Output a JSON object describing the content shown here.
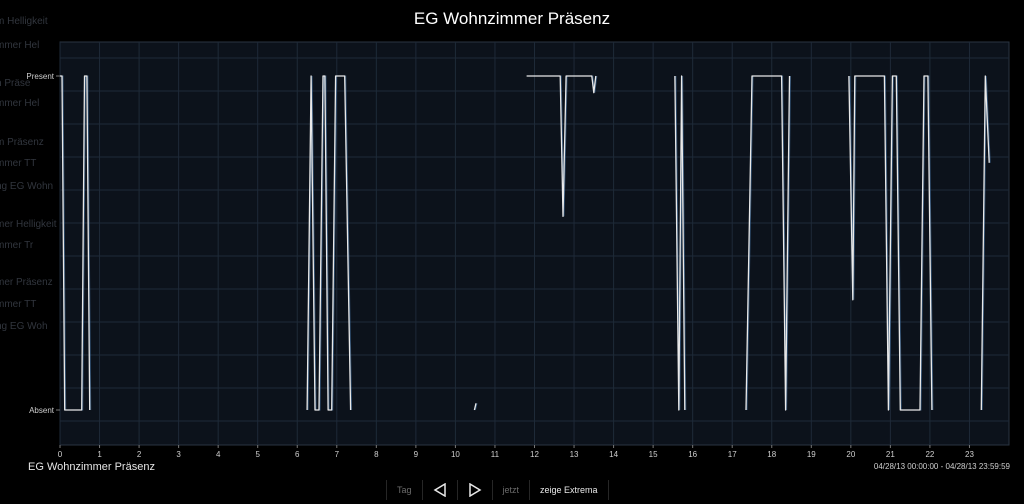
{
  "title": "EG Wohnzimmer Präsenz",
  "background_labels": [
    "m Helligkeit",
    "mmer Hel",
    "n Präse",
    "mmer Hel",
    "m Präsenz",
    "mmer TT",
    "ng EG Wohn",
    "mer Helligkeit",
    "mmer Tr",
    "mer Präsenz",
    "mmer TT",
    "ng EG Woh"
  ],
  "series_label": "EG Wohnzimmer Präsenz",
  "date_range": "04/28/13 00:00:00 - 04/28/13 23:59:59",
  "toolbar": {
    "tag": "Tag",
    "prev_icon": "triangle-left-icon",
    "next_icon": "triangle-right-icon",
    "jetzt": "jetzt",
    "extrema": "zeige Extrema"
  },
  "colors": {
    "plot_bg": "#0c121b",
    "grid": "#1e2a38",
    "line": "#e9e9e9",
    "line_alt": "#4a79ad"
  },
  "chart_data": {
    "type": "line",
    "title": "EG Wohnzimmer Präsenz",
    "x_ticks": [
      "0",
      "1",
      "2",
      "3",
      "4",
      "5",
      "6",
      "7",
      "8",
      "9",
      "10",
      "11",
      "12",
      "13",
      "14",
      "15",
      "16",
      "17",
      "18",
      "19",
      "20",
      "21",
      "22",
      "23"
    ],
    "xlim": [
      0,
      24
    ],
    "y_categories": [
      "Absent",
      "Present"
    ],
    "ylim": [
      0,
      1
    ],
    "grid": true,
    "series": [
      {
        "values": [
          [
            0.0,
            1
          ],
          [
            0.05,
            1
          ],
          [
            0.12,
            0
          ],
          [
            0.55,
            0
          ],
          [
            0.62,
            1
          ],
          [
            0.68,
            1
          ],
          [
            0.75,
            0
          ],
          [
            6.25,
            0
          ],
          [
            6.35,
            1
          ],
          [
            6.45,
            0
          ],
          [
            6.55,
            0
          ],
          [
            6.65,
            1
          ],
          [
            6.7,
            1
          ],
          [
            6.78,
            0
          ],
          [
            6.87,
            0
          ],
          [
            6.97,
            1
          ],
          [
            7.2,
            1
          ],
          [
            7.35,
            0
          ],
          [
            10.48,
            0
          ],
          [
            10.52,
            0.02
          ],
          [
            11.8,
            1
          ],
          [
            12.65,
            1
          ],
          [
            12.72,
            0.58
          ],
          [
            12.8,
            1
          ],
          [
            13.45,
            1
          ],
          [
            13.5,
            0.95
          ],
          [
            13.55,
            1
          ],
          [
            15.55,
            1
          ],
          [
            15.65,
            0
          ],
          [
            15.72,
            1
          ],
          [
            15.8,
            0
          ],
          [
            17.35,
            0
          ],
          [
            17.5,
            1
          ],
          [
            18.25,
            1
          ],
          [
            18.35,
            0
          ],
          [
            18.45,
            1
          ],
          [
            19.95,
            1
          ],
          [
            20.05,
            0.33
          ],
          [
            20.1,
            1
          ],
          [
            20.85,
            1
          ],
          [
            20.95,
            0
          ],
          [
            21.05,
            1
          ],
          [
            21.15,
            1
          ],
          [
            21.25,
            0
          ],
          [
            21.75,
            0
          ],
          [
            21.85,
            1
          ],
          [
            21.95,
            1
          ],
          [
            22.05,
            0
          ],
          [
            23.3,
            0
          ],
          [
            23.4,
            1
          ],
          [
            23.5,
            0.74
          ]
        ]
      }
    ]
  }
}
